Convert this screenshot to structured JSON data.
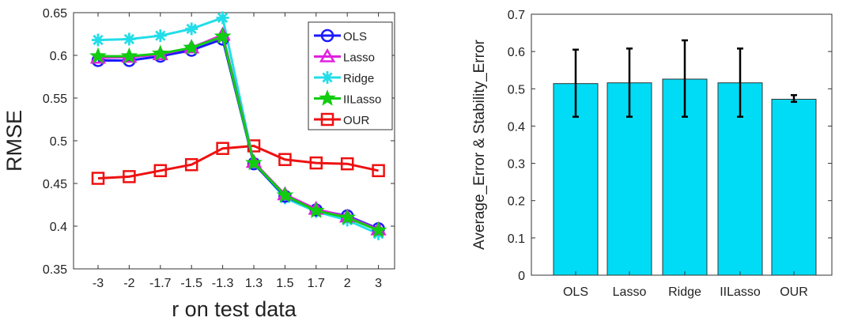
{
  "chart_data": [
    {
      "type": "line",
      "title": "",
      "xlabel": "r on test data",
      "ylabel": "RMSE",
      "categories": [
        "-3",
        "-2",
        "-1.7",
        "-1.5",
        "-1.3",
        "1.3",
        "1.5",
        "1.7",
        "2",
        "3"
      ],
      "ylim": [
        0.35,
        0.65
      ],
      "yticks": [
        "0.35",
        "0.4",
        "0.45",
        "0.5",
        "0.55",
        "0.6",
        "0.65"
      ],
      "legend_position": "top-right",
      "series": [
        {
          "name": "OLS",
          "color": "#1a1aff",
          "marker": "circle",
          "values": [
            0.594,
            0.594,
            0.599,
            0.606,
            0.619,
            0.473,
            0.435,
            0.419,
            0.412,
            0.397
          ]
        },
        {
          "name": "Lasso",
          "color": "#e020e0",
          "marker": "triangle",
          "values": [
            0.597,
            0.598,
            0.601,
            0.609,
            0.624,
            0.475,
            0.437,
            0.42,
            0.411,
            0.396
          ]
        },
        {
          "name": "Ridge",
          "color": "#22dde8",
          "marker": "asterisk",
          "values": [
            0.618,
            0.619,
            0.623,
            0.631,
            0.644,
            0.474,
            0.433,
            0.417,
            0.407,
            0.391
          ]
        },
        {
          "name": "IILasso",
          "color": "#11cc11",
          "marker": "star",
          "values": [
            0.599,
            0.599,
            0.602,
            0.609,
            0.622,
            0.474,
            0.436,
            0.418,
            0.41,
            0.395
          ]
        },
        {
          "name": "OUR",
          "color": "#ee1111",
          "marker": "square",
          "values": [
            0.456,
            0.458,
            0.465,
            0.472,
            0.491,
            0.494,
            0.478,
            0.474,
            0.473,
            0.465
          ]
        }
      ]
    },
    {
      "type": "bar",
      "title": "",
      "xlabel": "",
      "ylabel": "Average_Error & Stability_Error",
      "categories": [
        "OLS",
        "Lasso",
        "Ridge",
        "IILasso",
        "OUR"
      ],
      "values": [
        0.514,
        0.516,
        0.526,
        0.516,
        0.472
      ],
      "error_low": [
        0.425,
        0.425,
        0.425,
        0.425,
        0.465
      ],
      "error_high": [
        0.605,
        0.608,
        0.63,
        0.608,
        0.483
      ],
      "bar_color": "#00dcf5",
      "ylim": [
        0,
        0.7
      ],
      "yticks": [
        "0",
        "0.1",
        "0.2",
        "0.3",
        "0.4",
        "0.5",
        "0.6",
        "0.7"
      ]
    }
  ]
}
